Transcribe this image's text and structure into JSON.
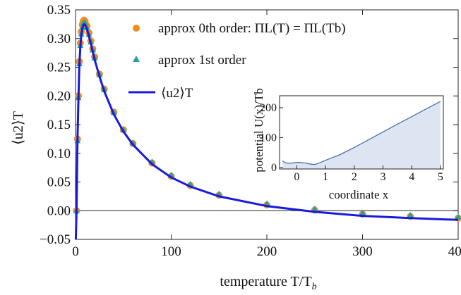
{
  "chart_data": [
    {
      "type": "scatter",
      "xlabel": "temperature T/T",
      "xlabel_sub": "b",
      "ylabel": "⟨u2⟩T",
      "xlim": [
        0,
        400
      ],
      "ylim": [
        -0.05,
        0.35
      ],
      "x_ticks": [
        "0",
        "100",
        "200",
        "300",
        "400"
      ],
      "y_ticks": [
        "−0.05",
        "0.00",
        "0.05",
        "0.10",
        "0.15",
        "0.20",
        "0.25",
        "0.30",
        "0.35"
      ],
      "zero_line": true,
      "legend_position": "top-right",
      "series": [
        {
          "name": "approx 0th order: Π_L(T) = Π_L(T_b)",
          "legend_text": "approx 0th order: ΠL(T) = ΠL(Tb)",
          "marker": "circle",
          "color": "#f28c1f",
          "x": [
            1,
            2,
            3,
            4,
            5,
            6,
            7,
            8,
            9,
            10,
            12,
            14,
            16,
            18,
            20,
            25,
            30,
            40,
            50,
            60,
            80,
            100,
            120,
            150,
            200,
            250,
            300,
            350,
            400
          ],
          "y": [
            0.0,
            0.125,
            0.2,
            0.26,
            0.292,
            0.312,
            0.324,
            0.33,
            0.332,
            0.33,
            0.322,
            0.31,
            0.296,
            0.282,
            0.268,
            0.238,
            0.212,
            0.172,
            0.141,
            0.117,
            0.083,
            0.06,
            0.044,
            0.027,
            0.01,
            0.001,
            -0.006,
            -0.01,
            -0.013
          ]
        },
        {
          "name": "approx 1st order",
          "legend_text": "approx 1st order",
          "marker": "triangle",
          "color": "#2aa198",
          "x": [
            1,
            2,
            3,
            4,
            5,
            6,
            7,
            8,
            9,
            10,
            12,
            14,
            16,
            18,
            20,
            25,
            30,
            40,
            50,
            60,
            80,
            100,
            120,
            150,
            200,
            250,
            300,
            350,
            400
          ],
          "y": [
            0.0,
            0.122,
            0.197,
            0.256,
            0.288,
            0.308,
            0.32,
            0.326,
            0.328,
            0.327,
            0.319,
            0.307,
            0.294,
            0.28,
            0.266,
            0.237,
            0.211,
            0.171,
            0.141,
            0.118,
            0.085,
            0.062,
            0.046,
            0.029,
            0.012,
            0.003,
            -0.004,
            -0.008,
            -0.011
          ]
        },
        {
          "name": "⟨u2⟩T",
          "legend_text": "⟨u2⟩T",
          "marker": "line",
          "color": "#1a1adb",
          "x": [
            0.3,
            1,
            2,
            3,
            4,
            5,
            6,
            7,
            8,
            9,
            10,
            12,
            14,
            16,
            18,
            20,
            25,
            30,
            40,
            50,
            60,
            80,
            100,
            120,
            150,
            200,
            250,
            300,
            350,
            400
          ],
          "y": [
            -0.05,
            0.0,
            0.12,
            0.195,
            0.253,
            0.285,
            0.305,
            0.317,
            0.323,
            0.325,
            0.324,
            0.316,
            0.304,
            0.291,
            0.277,
            0.263,
            0.234,
            0.208,
            0.168,
            0.138,
            0.115,
            0.081,
            0.058,
            0.042,
            0.025,
            0.008,
            -0.002,
            -0.009,
            -0.013,
            -0.016
          ]
        }
      ]
    },
    {
      "type": "area",
      "role": "inset",
      "ylabel": "potential U(x)/Tb",
      "xlabel": "coordinate x",
      "xlim": [
        -0.6,
        5.1
      ],
      "ylim": [
        -5,
        240
      ],
      "x_ticks": [
        "0",
        "1",
        "2",
        "3",
        "4",
        "5"
      ],
      "y_ticks": [
        "0",
        "100",
        "200"
      ],
      "fill_color": "#dde4f2",
      "line_color": "#4a6fa5",
      "x": [
        -0.5,
        -0.4,
        -0.3,
        -0.2,
        -0.1,
        0.0,
        0.1,
        0.2,
        0.3,
        0.4,
        0.5,
        0.6,
        0.7,
        1.0,
        1.5,
        2.0,
        2.5,
        3.0,
        3.5,
        4.0,
        4.5,
        5.0
      ],
      "y": [
        22,
        16,
        14,
        14,
        16,
        17,
        17,
        16,
        15,
        13,
        11,
        10,
        12,
        24,
        43,
        67,
        93,
        119,
        145,
        170,
        196,
        221
      ]
    }
  ]
}
